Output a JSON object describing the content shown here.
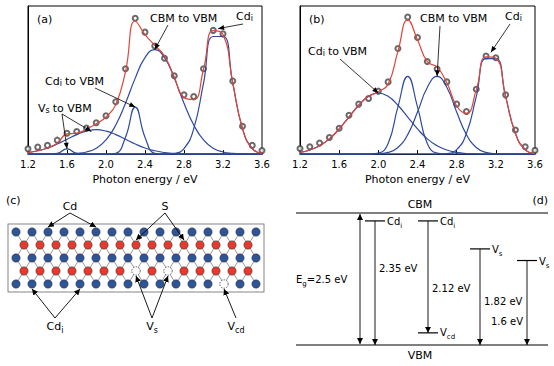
{
  "chart_data": [
    {
      "type": "line",
      "title": "(a)",
      "x_label": "Photon energy / eV",
      "xlim": [
        1.2,
        3.6
      ],
      "xticks": [
        1.2,
        1.6,
        {
          "value": 2,
          "label": "2.0"
        },
        2.4,
        2.8,
        3.2,
        3.6
      ],
      "ylim": [
        0,
        0.85
      ],
      "tick_labels": "x",
      "grid": false,
      "x": [
        1.2,
        1.3,
        1.4,
        1.5,
        1.6,
        1.7,
        1.8,
        1.9,
        2.0,
        2.1,
        2.2,
        2.3,
        2.4,
        2.5,
        2.6,
        2.7,
        2.8,
        2.9,
        3.0,
        3.1,
        3.2,
        3.3,
        3.4,
        3.5,
        3.6
      ],
      "series": [
        {
          "type": "line",
          "line_style": "solid",
          "color": "#2e4a9e",
          "values": [
            0,
            0,
            0,
            0.004,
            0.03,
            0.004,
            0,
            0,
            0,
            0,
            0,
            0,
            0,
            0,
            0,
            0,
            0,
            0,
            0,
            0,
            0,
            0,
            0,
            0,
            0
          ]
        },
        {
          "type": "line",
          "line_style": "solid",
          "color": "#2e4a9e",
          "values": [
            0.009,
            0.019,
            0.035,
            0.058,
            0.085,
            0.112,
            0.132,
            0.14,
            0.132,
            0.112,
            0.085,
            0.058,
            0.035,
            0.019,
            0.009,
            0.003,
            0.001,
            0,
            0,
            0,
            0,
            0,
            0,
            0,
            0
          ]
        },
        {
          "type": "line",
          "line_style": "solid",
          "color": "#2e4a9e",
          "values": [
            0,
            0,
            0,
            0,
            0,
            0,
            0,
            0,
            0,
            0.005,
            0.097,
            0.27,
            0.097,
            0.005,
            0,
            0,
            0,
            0,
            0,
            0,
            0,
            0,
            0,
            0,
            0
          ]
        },
        {
          "type": "line",
          "line_style": "solid",
          "color": "#2e4a9e",
          "values": [
            0,
            0,
            0,
            0,
            0.001,
            0.004,
            0.012,
            0.034,
            0.081,
            0.167,
            0.292,
            0.436,
            0.554,
            0.6,
            0.554,
            0.436,
            0.292,
            0.167,
            0.081,
            0.034,
            0.012,
            0.004,
            0.001,
            0,
            0
          ]
        },
        {
          "type": "line",
          "line_style": "solid",
          "color": "#2e4a9e",
          "values": [
            0,
            0,
            0,
            0,
            0,
            0,
            0,
            0,
            0,
            0,
            0,
            0,
            0,
            0,
            0,
            0.004,
            0.032,
            0.146,
            0.406,
            0.675,
            0.675,
            0.406,
            0.146,
            0.032,
            0.004
          ]
        },
        {
          "type": "scatter",
          "marker": "open_circle",
          "color": "#444444",
          "values": [
            0.03,
            0.04,
            0.05,
            0.08,
            0.12,
            0.13,
            0.15,
            0.18,
            0.22,
            0.3,
            0.49,
            0.78,
            0.7,
            0.62,
            0.55,
            0.45,
            0.34,
            0.33,
            0.49,
            0.71,
            0.69,
            0.42,
            0.16,
            0.05,
            0.02
          ]
        },
        {
          "type": "line",
          "line_style": "solid",
          "color": "#e0453a",
          "values": [
            0.009,
            0.019,
            0.035,
            0.062,
            0.116,
            0.12,
            0.144,
            0.174,
            0.213,
            0.284,
            0.474,
            0.764,
            0.686,
            0.624,
            0.563,
            0.443,
            0.325,
            0.313,
            0.487,
            0.709,
            0.687,
            0.41,
            0.147,
            0.032,
            0.004
          ]
        }
      ],
      "annotations": [
        {
          "text": {
            "main": "V",
            "sub": "s",
            "after": " to VBM"
          },
          "points": [
            [
              1.6,
              0.03
            ],
            [
              1.85,
              0.13
            ]
          ]
        },
        {
          "text": {
            "main": "Cd",
            "sub": "i",
            "after": " to VBM"
          },
          "points": [
            [
              2.3,
              0.27
            ]
          ]
        },
        {
          "text": "CBM to VBM",
          "points": [
            [
              2.5,
              0.6
            ]
          ]
        },
        {
          "text": {
            "main": "Cd",
            "sub": "i"
          },
          "points": [
            [
              3.15,
              0.72
            ]
          ]
        }
      ]
    },
    {
      "type": "line",
      "title": "(b)",
      "x_label": "Photon energy / eV",
      "xlim": [
        1.2,
        3.6
      ],
      "xticks": [
        1.2,
        1.6,
        {
          "value": 2,
          "label": "2.0"
        },
        2.4,
        2.8,
        3.2,
        3.6
      ],
      "ylim": [
        0,
        0.8
      ],
      "tick_labels": "x",
      "grid": false,
      "x": [
        1.2,
        1.3,
        1.4,
        1.5,
        1.6,
        1.7,
        1.8,
        1.9,
        2.0,
        2.1,
        2.2,
        2.3,
        2.4,
        2.5,
        2.6,
        2.7,
        2.8,
        2.9,
        3.0,
        3.1,
        3.2,
        3.3,
        3.4,
        3.5,
        3.6
      ],
      "series": [
        {
          "type": "line",
          "line_style": "solid",
          "color": "#2e4a9e",
          "values": [
            0.009,
            0.022,
            0.045,
            0.082,
            0.136,
            0.2,
            0.264,
            0.312,
            0.33,
            0.312,
            0.264,
            0.2,
            0.136,
            0.082,
            0.045,
            0.022,
            0.009,
            0.003,
            0.001,
            0,
            0,
            0,
            0,
            0,
            0
          ]
        },
        {
          "type": "line",
          "line_style": "solid",
          "color": "#2e4a9e",
          "values": [
            0,
            0,
            0,
            0,
            0,
            0,
            0,
            0,
            0.005,
            0.057,
            0.255,
            0.42,
            0.255,
            0.057,
            0.005,
            0,
            0,
            0,
            0,
            0,
            0,
            0,
            0,
            0,
            0
          ]
        },
        {
          "type": "line",
          "line_style": "solid",
          "color": "#2e4a9e",
          "values": [
            0,
            0,
            0,
            0,
            0,
            0,
            0,
            0,
            0.002,
            0.009,
            0.036,
            0.105,
            0.227,
            0.36,
            0.42,
            0.36,
            0.227,
            0.105,
            0.036,
            0.009,
            0.002,
            0,
            0,
            0,
            0
          ]
        },
        {
          "type": "line",
          "line_style": "solid",
          "color": "#2e4a9e",
          "values": [
            0,
            0,
            0,
            0,
            0,
            0,
            0,
            0,
            0,
            0,
            0,
            0,
            0,
            0,
            0,
            0.003,
            0.024,
            0.112,
            0.31,
            0.516,
            0.516,
            0.31,
            0.112,
            0.024,
            0.003
          ]
        },
        {
          "type": "scatter",
          "marker": "open_circle",
          "color": "#444444",
          "values": [
            0.03,
            0.04,
            0.06,
            0.09,
            0.14,
            0.21,
            0.27,
            0.3,
            0.34,
            0.39,
            0.57,
            0.74,
            0.63,
            0.5,
            0.46,
            0.39,
            0.27,
            0.23,
            0.35,
            0.53,
            0.52,
            0.32,
            0.13,
            0.04,
            0.02
          ]
        },
        {
          "type": "line",
          "line_style": "solid",
          "color": "#e0453a",
          "values": [
            0.009,
            0.022,
            0.045,
            0.082,
            0.136,
            0.2,
            0.264,
            0.312,
            0.337,
            0.378,
            0.555,
            0.725,
            0.618,
            0.499,
            0.47,
            0.385,
            0.26,
            0.22,
            0.347,
            0.525,
            0.518,
            0.31,
            0.112,
            0.024,
            0.003
          ]
        }
      ],
      "annotations": [
        {
          "text": {
            "main": "Cd",
            "sub": "i",
            "after": " to VBM"
          },
          "points": [
            [
              2.0,
              0.33
            ]
          ]
        },
        {
          "text": "CBM to VBM",
          "points": [
            [
              2.6,
              0.42
            ]
          ]
        },
        {
          "text": {
            "main": "Cd",
            "sub": "i"
          },
          "points": [
            [
              3.15,
              0.55
            ]
          ]
        }
      ]
    }
  ],
  "panel_c": {
    "title": "(c)",
    "top": [
      {
        "text": "Cd",
        "color": "#2f5597"
      },
      {
        "text": "S",
        "color": "#e03c31"
      }
    ],
    "bottom": [
      {
        "main": "Cd",
        "sub": "i"
      },
      {
        "main": "V",
        "sub": "s"
      },
      {
        "main": "V",
        "sub": "cd"
      }
    ]
  },
  "panel_d": {
    "title": "(d)",
    "upper": "CBM",
    "lower": "VBM",
    "gap": {
      "text": {
        "main": "E",
        "sub": "g",
        "after": "=2.5 eV"
      },
      "value": 2.5
    },
    "transitions": [
      {
        "from": {
          "main": "Cd",
          "sub": "i"
        },
        "level": 2.35,
        "value": 2.35,
        "label": "2.35 eV"
      },
      {
        "from": {
          "main": "Cd",
          "sub": "i"
        },
        "to": {
          "main": "V",
          "sub": "cd"
        },
        "level": 2.35,
        "value": 2.12,
        "label": "2.12 eV"
      },
      {
        "from": {
          "main": "V",
          "sub": "s"
        },
        "level": 1.82,
        "value": 1.82,
        "label": "1.82 eV"
      },
      {
        "from": {
          "main": "V",
          "sub": "s"
        },
        "level": 1.6,
        "value": 1.6,
        "label": "1.6 eV"
      }
    ]
  }
}
